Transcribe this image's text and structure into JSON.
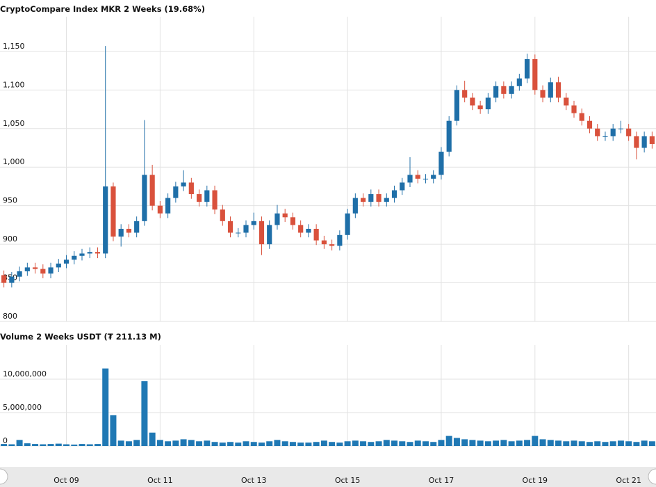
{
  "chart_data": {
    "type": "candlestick",
    "title": "CryptoCompare Index MKR 2 Weeks (19.68%)",
    "categories": [
      null,
      null,
      null,
      null,
      null,
      null,
      null,
      null,
      "Oct 09",
      null,
      null,
      null,
      null,
      null,
      null,
      null,
      null,
      null,
      null,
      null,
      "Oct 11",
      null,
      null,
      null,
      null,
      null,
      null,
      null,
      null,
      null,
      null,
      null,
      "Oct 13",
      null,
      null,
      null,
      null,
      null,
      null,
      null,
      null,
      null,
      null,
      null,
      "Oct 15",
      null,
      null,
      null,
      null,
      null,
      null,
      null,
      null,
      null,
      null,
      null,
      "Oct 17",
      null,
      null,
      null,
      null,
      null,
      null,
      null,
      null,
      null,
      null,
      null,
      "Oct 19",
      null,
      null,
      null,
      null,
      null,
      null,
      null,
      null,
      null,
      null,
      null,
      "Oct 21",
      null,
      null,
      null
    ],
    "open": [
      860,
      850,
      858,
      865,
      870,
      868,
      862,
      870,
      875,
      880,
      885,
      888,
      890,
      888,
      975,
      910,
      920,
      915,
      930,
      990,
      950,
      940,
      960,
      975,
      980,
      965,
      955,
      970,
      945,
      930,
      915,
      915,
      925,
      930,
      900,
      925,
      940,
      935,
      925,
      915,
      920,
      905,
      900,
      898,
      912,
      940,
      960,
      955,
      965,
      955,
      960,
      970,
      980,
      990,
      985,
      985,
      990,
      1020,
      1060,
      1100,
      1090,
      1080,
      1075,
      1090,
      1105,
      1095,
      1105,
      1115,
      1140,
      1100,
      1090,
      1110,
      1090,
      1080,
      1070,
      1060,
      1050,
      1040,
      1040,
      1050,
      1050,
      1040,
      1025,
      1040
    ],
    "high": [
      866,
      864,
      871,
      876,
      876,
      874,
      876,
      881,
      886,
      891,
      894,
      896,
      896,
      1157,
      980,
      926,
      926,
      936,
      1061,
      1003,
      956,
      966,
      981,
      996,
      986,
      971,
      976,
      976,
      951,
      936,
      921,
      931,
      941,
      936,
      931,
      951,
      946,
      941,
      931,
      926,
      926,
      911,
      906,
      918,
      946,
      966,
      966,
      971,
      971,
      966,
      976,
      986,
      1013,
      996,
      991,
      996,
      1026,
      1066,
      1106,
      1112,
      1096,
      1086,
      1096,
      1111,
      1111,
      1111,
      1121,
      1147,
      1146,
      1106,
      1116,
      1117,
      1096,
      1086,
      1076,
      1066,
      1056,
      1046,
      1056,
      1060,
      1056,
      1046,
      1046,
      1046
    ],
    "low": [
      844,
      844,
      852,
      859,
      862,
      856,
      856,
      864,
      869,
      874,
      879,
      882,
      882,
      882,
      904,
      897,
      909,
      909,
      924,
      944,
      934,
      934,
      954,
      969,
      959,
      949,
      949,
      939,
      924,
      909,
      909,
      909,
      919,
      886,
      894,
      919,
      929,
      919,
      909,
      909,
      899,
      894,
      892,
      892,
      906,
      934,
      949,
      949,
      949,
      949,
      954,
      964,
      974,
      979,
      979,
      979,
      984,
      1014,
      1054,
      1084,
      1074,
      1069,
      1069,
      1084,
      1089,
      1089,
      1099,
      1109,
      1094,
      1084,
      1084,
      1084,
      1074,
      1064,
      1054,
      1044,
      1034,
      1034,
      1034,
      1044,
      1034,
      1010,
      1019,
      1024
    ],
    "close": [
      850,
      858,
      865,
      870,
      868,
      862,
      870,
      875,
      880,
      885,
      888,
      890,
      888,
      975,
      910,
      920,
      915,
      930,
      990,
      950,
      940,
      960,
      975,
      980,
      965,
      955,
      970,
      945,
      930,
      915,
      915,
      925,
      930,
      900,
      925,
      940,
      935,
      925,
      915,
      920,
      905,
      900,
      898,
      912,
      940,
      960,
      955,
      965,
      955,
      960,
      970,
      980,
      990,
      985,
      985,
      990,
      1020,
      1060,
      1100,
      1090,
      1080,
      1075,
      1090,
      1105,
      1095,
      1105,
      1115,
      1140,
      1100,
      1090,
      1110,
      1090,
      1080,
      1070,
      1060,
      1050,
      1040,
      1040,
      1050,
      1050,
      1040,
      1025,
      1040,
      1030
    ],
    "up_color": "#1f6fa8",
    "down_color": "#d9513c",
    "ylim": [
      800,
      1195
    ],
    "yticks": [
      800,
      850,
      900,
      950,
      {
        "value": 1000,
        "label": "1,000"
      },
      {
        "value": 1050,
        "label": "1,050"
      },
      {
        "value": 1100,
        "label": "1,100"
      },
      {
        "value": 1150,
        "label": "1,150"
      }
    ],
    "grid": true,
    "volume": {
      "title": "Volume 2 Weeks USDT (₮ 211.13 M)",
      "color": "#1f78b4",
      "values": [
        300000,
        250000,
        900000,
        400000,
        300000,
        250000,
        300000,
        350000,
        250000,
        200000,
        300000,
        250000,
        300000,
        11600000,
        4600000,
        800000,
        700000,
        900000,
        9700000,
        2000000,
        900000,
        700000,
        800000,
        1000000,
        900000,
        700000,
        800000,
        600000,
        500000,
        600000,
        500000,
        700000,
        600000,
        500000,
        700000,
        900000,
        700000,
        600000,
        500000,
        500000,
        600000,
        800000,
        600000,
        500000,
        700000,
        800000,
        700000,
        600000,
        700000,
        900000,
        800000,
        700000,
        600000,
        800000,
        700000,
        600000,
        900000,
        1500000,
        1200000,
        1000000,
        900000,
        800000,
        700000,
        800000,
        900000,
        700000,
        800000,
        900000,
        1500000,
        1000000,
        900000,
        800000,
        700000,
        800000,
        700000,
        600000,
        700000,
        600000,
        700000,
        800000,
        700000,
        600000,
        800000,
        700000
      ],
      "ylim": [
        0,
        15100000
      ],
      "yticks": [
        0,
        {
          "value": 5000000,
          "label": "5,000,000"
        },
        {
          "value": 10000000,
          "label": "10,000,000"
        }
      ],
      "grid": true
    }
  }
}
